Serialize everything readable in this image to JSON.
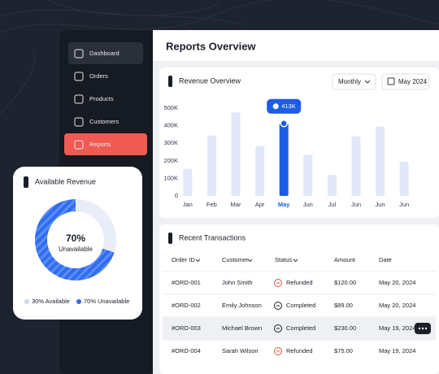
{
  "sidebar": {
    "items": [
      "Dashboard",
      "Orders",
      "Products",
      "Customers",
      "Reports"
    ],
    "active": 4
  },
  "page_title": "Reports Overview",
  "filters": {
    "period": "Monthly",
    "date": "May 2024"
  },
  "chart_data": [
    {
      "type": "bar",
      "title": "Revenue Overview",
      "categories": [
        "Jan",
        "Feb",
        "Mar",
        "Apr",
        "May",
        "Jun",
        "Jul",
        "Jun",
        "Jun",
        "Jun"
      ],
      "values": [
        155000,
        345000,
        475000,
        285000,
        413000,
        235000,
        120000,
        340000,
        395000,
        195000
      ],
      "value_labels": [
        null,
        null,
        null,
        null,
        "413K",
        null,
        null,
        null,
        null,
        null
      ],
      "colors": [
        "#e2e8f9",
        "#e2e8f9",
        "#e2e8f9",
        "#e2e8f9",
        "#1d5ce6",
        "#e2e8f9",
        "#e2e8f9",
        "#e2e8f9",
        "#e2e8f9",
        "#e2e8f9"
      ],
      "ylim": [
        0,
        500000
      ],
      "yticks": [
        0,
        {
          "value": 100000,
          "label": "100K"
        },
        {
          "value": 200000,
          "label": "200K"
        },
        {
          "value": 300000,
          "label": "300K"
        },
        {
          "value": 400000,
          "label": "400K"
        },
        {
          "value": 500000,
          "label": "500K"
        }
      ],
      "grid": false
    },
    {
      "type": "pie",
      "title": "Available Revenue",
      "categories": [
        "Available",
        "Unavailable"
      ],
      "labels": [
        "30% Available",
        "70% Unavailable"
      ],
      "values": [
        30,
        70
      ],
      "value_labels": [
        null,
        "70%"
      ],
      "center_caption": "Unavailable",
      "colors": [
        "#e9edf9",
        "#2f6cf0"
      ]
    }
  ],
  "transactions": {
    "title": "Recent Transactions",
    "columns": [
      "Order ID",
      "Customer",
      "Status",
      "Amount",
      "Date"
    ],
    "rows": [
      [
        "#ORD-001",
        "John Smith",
        "Refunded",
        "$120.00",
        "May 20, 2024"
      ],
      [
        "#ORD-002",
        "Emily Johnson",
        "Completed",
        "$89.00",
        "May 20, 2024"
      ],
      [
        "#ORD-003",
        "Michael Brown",
        "Completed",
        "$230.00",
        "May 19, 2024"
      ],
      [
        "#ORD-004",
        "Sarah Wilson",
        "Refunded",
        "$75.00",
        "May 19, 2024"
      ]
    ]
  }
}
